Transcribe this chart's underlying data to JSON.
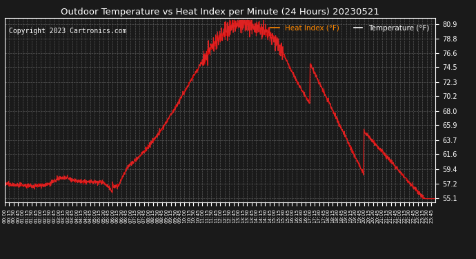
{
  "title": "Outdoor Temperature vs Heat Index per Minute (24 Hours) 20230521",
  "copyright": "Copyright 2023 Cartronics.com",
  "legend_heat": "Heat Index (°F)",
  "legend_temp": "Temperature (°F)",
  "y_ticks": [
    55.1,
    57.2,
    59.4,
    61.6,
    63.7,
    65.9,
    68.0,
    70.2,
    72.3,
    74.5,
    76.6,
    78.8,
    80.9
  ],
  "y_min": 54.5,
  "y_max": 81.8,
  "background_color": "#1a1a1a",
  "plot_bg_color": "#1a1a1a",
  "line_color_temp": "#cc0000",
  "line_color_heat": "#dd2222",
  "grid_color": "#555555",
  "title_color": "#ffffff",
  "copyright_color": "#ffffff",
  "legend_heat_color": "#ff8800",
  "legend_temp_color": "#ffffff",
  "tick_color": "#ffffff"
}
